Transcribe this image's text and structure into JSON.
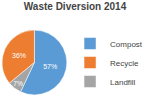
{
  "chart_data": {
    "type": "pie",
    "title": "Waste Diversion 2014",
    "categories": [
      "Compost",
      "Recycle",
      "Landfill"
    ],
    "values": [
      57,
      36,
      7
    ],
    "value_labels": [
      "57%",
      "36%",
      "7%"
    ],
    "colors": [
      "#5b9bd5",
      "#ed7d31",
      "#a5a5a5"
    ],
    "data_labels": true,
    "legend": "right"
  }
}
